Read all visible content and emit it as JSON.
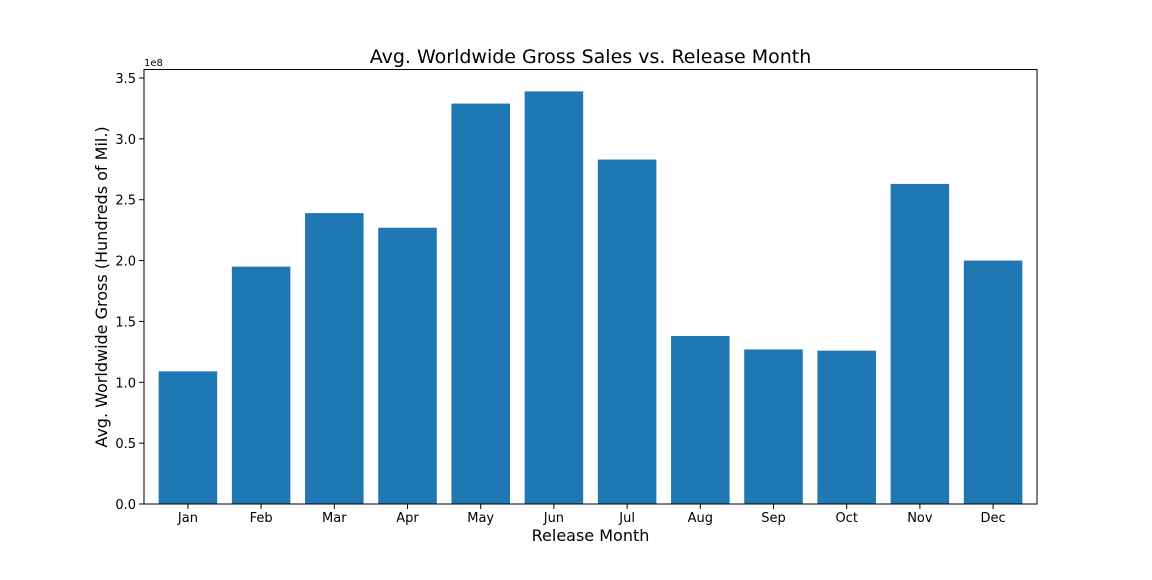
{
  "chart_data": {
    "type": "bar",
    "title": "Avg. Worldwide Gross Sales vs. Release Month",
    "xlabel": "Release Month",
    "ylabel": "Avg. Worldwide Gross (Hundreds of Mil.)",
    "offset_label": "1e8",
    "categories": [
      "Jan",
      "Feb",
      "Mar",
      "Apr",
      "May",
      "Jun",
      "Jul",
      "Aug",
      "Sep",
      "Oct",
      "Nov",
      "Dec"
    ],
    "values": [
      1.09,
      1.95,
      2.39,
      2.27,
      3.29,
      3.39,
      2.83,
      1.38,
      1.27,
      1.26,
      2.63,
      2.0
    ],
    "value_scale": 100000000,
    "ylim": [
      0,
      3.57
    ],
    "yticks": [
      0.0,
      0.5,
      1.0,
      1.5,
      2.0,
      2.5,
      3.0,
      3.5
    ],
    "ytick_labels": [
      "0.0",
      "0.5",
      "1.0",
      "1.5",
      "2.0",
      "2.5",
      "3.0",
      "3.5"
    ],
    "grid": false,
    "legend": "none",
    "bar_color": "#1f77b4"
  }
}
